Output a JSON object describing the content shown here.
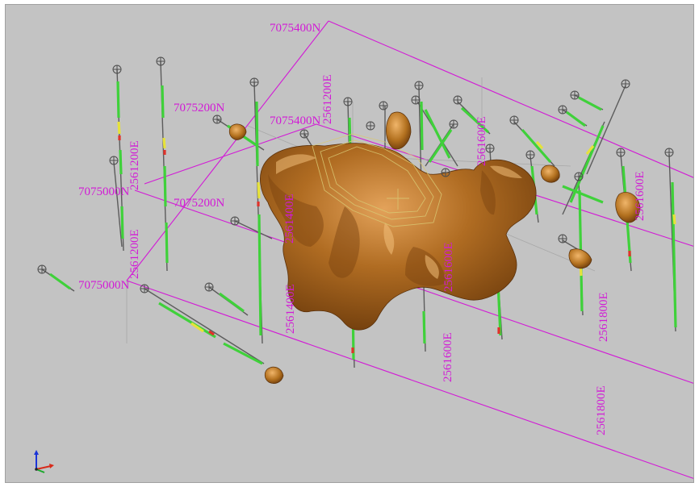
{
  "viewport": {
    "background": "#c3c3c3",
    "grid_color": "#d21ad6",
    "orebody_color": "#a8641c",
    "drillhole_color": "#5a5a5a"
  },
  "grid_labels": {
    "n_7075400_top": "7075400N",
    "n_7075200_left": "7075200N",
    "n_7075400_mid": "7075400N",
    "e_2561200_top": "2561200E",
    "e_2561200_left_upper": "2561200E",
    "n_7075000_left_upper": "7075000N",
    "n_7075200_mid": "7075200N",
    "e_2561400_upper": "2561400E",
    "e_2561600_upper": "2561600E",
    "e_2561600_right": "2561600E",
    "e_2561600_mid": "2561600E",
    "e_2561200_left_lower": "2561200E",
    "n_7075000_left_lower": "7075000N",
    "e_2561400_lower": "2561400E",
    "e_2561600_lower": "2561600E",
    "e_2561800_mid": "2561800E",
    "e_2561800_lower": "2561800E"
  },
  "icons": {
    "collar": "drillhole-collar-icon",
    "axis": "xyz-axis-triad-icon"
  }
}
